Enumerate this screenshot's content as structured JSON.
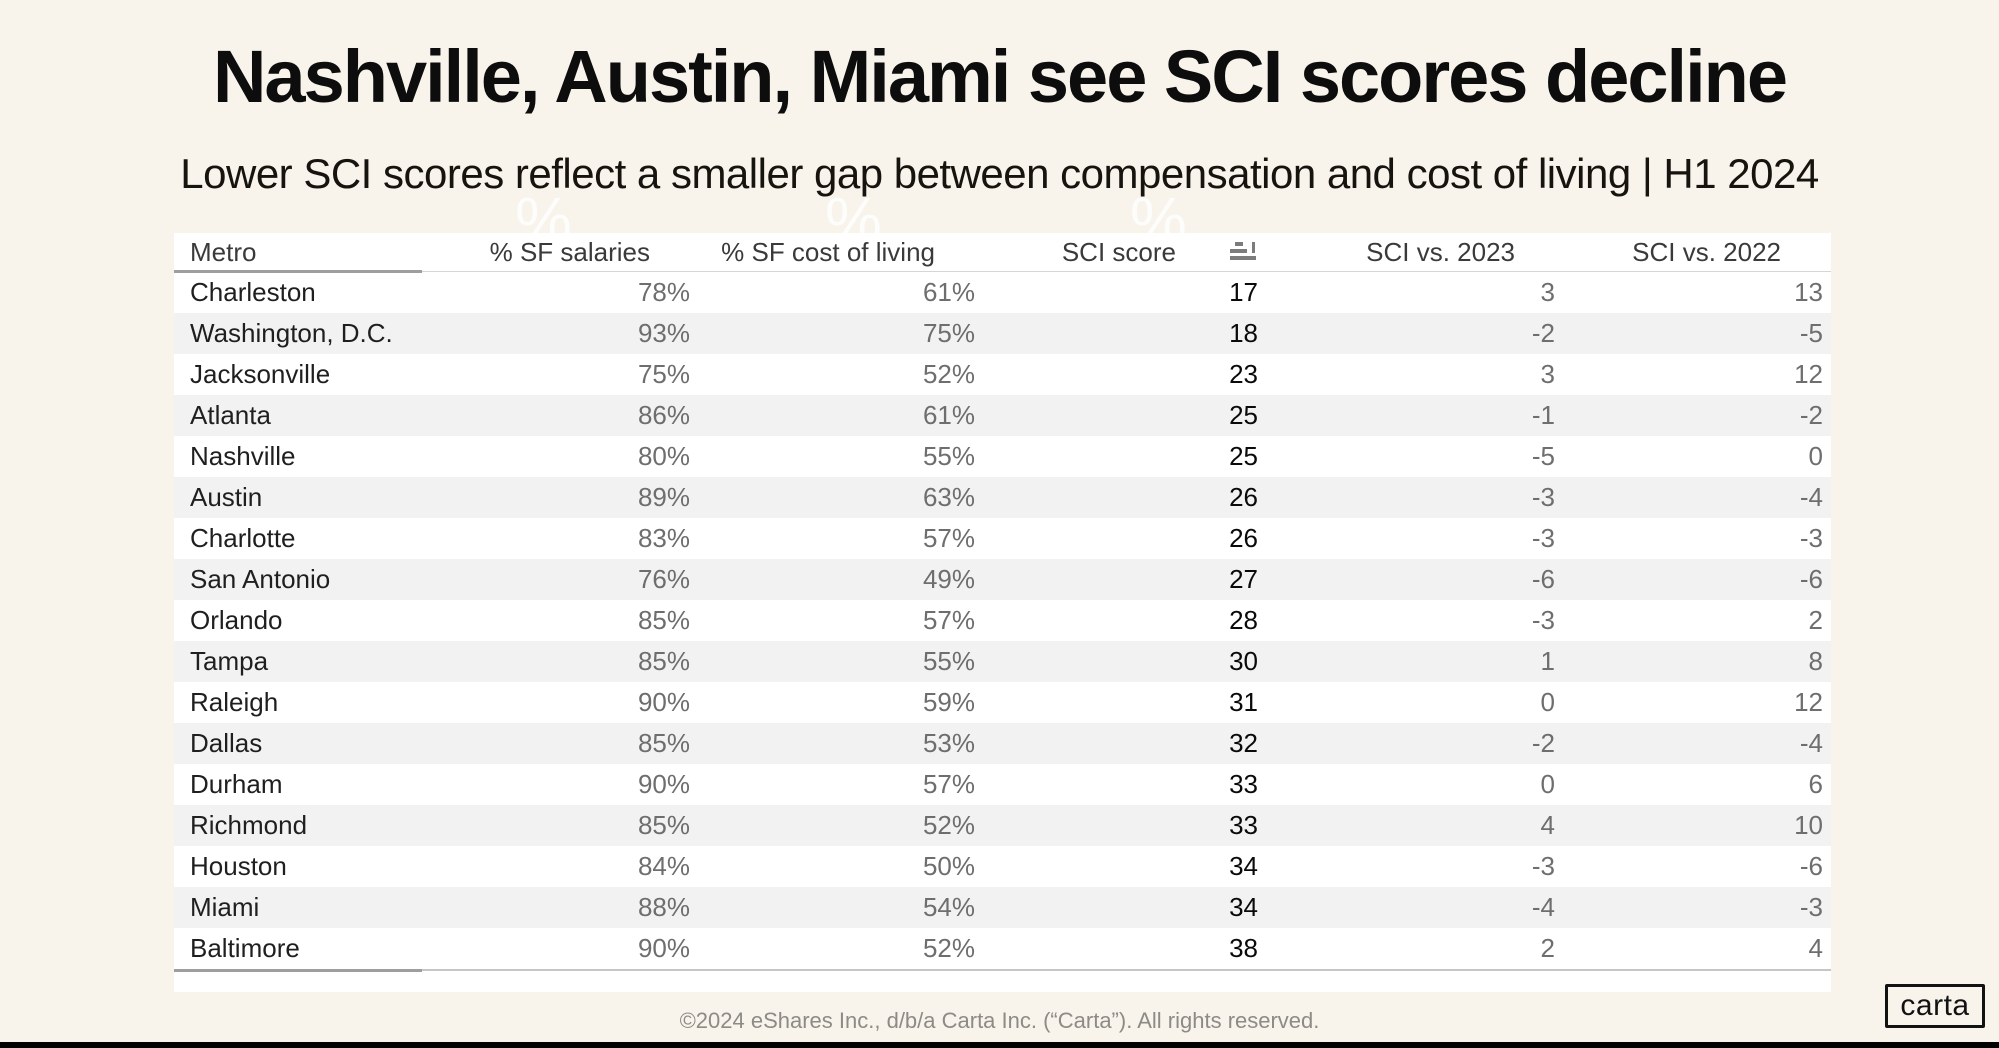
{
  "page": {
    "title": "Nashville, Austin, Miami see SCI scores decline",
    "subtitle": "Lower SCI scores reflect a smaller gap between compensation and cost of living | H1 2024",
    "footer": "©2024 eShares Inc., d/b/a Carta Inc. (“Carta”). All rights reserved.",
    "logo_text": "carta",
    "watermark_glyph": "%"
  },
  "icons": {
    "sci_score_header": "sort-ascending-bars"
  },
  "colors": {
    "background": "#f8f3eb",
    "table_background": "#ffffff",
    "row_stripe": "#f2f2f2",
    "primary_text": "#0d0d0d",
    "muted_value_text": "#6e6e6e",
    "header_text": "#3a3a3a",
    "footer_text": "#8d8b86",
    "bottom_bar": "#010101"
  },
  "chart_data": {
    "type": "table",
    "title": "Nashville, Austin, Miami see SCI scores decline",
    "subtitle": "Lower SCI scores reflect a smaller gap between compensation and cost of living | H1 2024",
    "columns": [
      "Metro",
      "% SF salaries",
      "% SF cost of living",
      "SCI score",
      "SCI vs. 2023",
      "SCI vs. 2022"
    ],
    "row_field_order": [
      "metro",
      "pct_sf_salaries",
      "pct_sf_cost_of_living",
      "sci_score",
      "sci_vs_2023",
      "sci_vs_2022"
    ],
    "sorted_by": "SCI score ascending",
    "rows": [
      {
        "metro": "Charleston",
        "pct_sf_salaries": "78%",
        "pct_sf_cost_of_living": "61%",
        "sci_score": "17",
        "sci_vs_2023": "3",
        "sci_vs_2022": "13"
      },
      {
        "metro": "Washington, D.C.",
        "pct_sf_salaries": "93%",
        "pct_sf_cost_of_living": "75%",
        "sci_score": "18",
        "sci_vs_2023": "-2",
        "sci_vs_2022": "-5"
      },
      {
        "metro": "Jacksonville",
        "pct_sf_salaries": "75%",
        "pct_sf_cost_of_living": "52%",
        "sci_score": "23",
        "sci_vs_2023": "3",
        "sci_vs_2022": "12"
      },
      {
        "metro": "Atlanta",
        "pct_sf_salaries": "86%",
        "pct_sf_cost_of_living": "61%",
        "sci_score": "25",
        "sci_vs_2023": "-1",
        "sci_vs_2022": "-2"
      },
      {
        "metro": "Nashville",
        "pct_sf_salaries": "80%",
        "pct_sf_cost_of_living": "55%",
        "sci_score": "25",
        "sci_vs_2023": "-5",
        "sci_vs_2022": "0"
      },
      {
        "metro": "Austin",
        "pct_sf_salaries": "89%",
        "pct_sf_cost_of_living": "63%",
        "sci_score": "26",
        "sci_vs_2023": "-3",
        "sci_vs_2022": "-4"
      },
      {
        "metro": "Charlotte",
        "pct_sf_salaries": "83%",
        "pct_sf_cost_of_living": "57%",
        "sci_score": "26",
        "sci_vs_2023": "-3",
        "sci_vs_2022": "-3"
      },
      {
        "metro": "San Antonio",
        "pct_sf_salaries": "76%",
        "pct_sf_cost_of_living": "49%",
        "sci_score": "27",
        "sci_vs_2023": "-6",
        "sci_vs_2022": "-6"
      },
      {
        "metro": "Orlando",
        "pct_sf_salaries": "85%",
        "pct_sf_cost_of_living": "57%",
        "sci_score": "28",
        "sci_vs_2023": "-3",
        "sci_vs_2022": "2"
      },
      {
        "metro": "Tampa",
        "pct_sf_salaries": "85%",
        "pct_sf_cost_of_living": "55%",
        "sci_score": "30",
        "sci_vs_2023": "1",
        "sci_vs_2022": "8"
      },
      {
        "metro": "Raleigh",
        "pct_sf_salaries": "90%",
        "pct_sf_cost_of_living": "59%",
        "sci_score": "31",
        "sci_vs_2023": "0",
        "sci_vs_2022": "12"
      },
      {
        "metro": "Dallas",
        "pct_sf_salaries": "85%",
        "pct_sf_cost_of_living": "53%",
        "sci_score": "32",
        "sci_vs_2023": "-2",
        "sci_vs_2022": "-4"
      },
      {
        "metro": "Durham",
        "pct_sf_salaries": "90%",
        "pct_sf_cost_of_living": "57%",
        "sci_score": "33",
        "sci_vs_2023": "0",
        "sci_vs_2022": "6"
      },
      {
        "metro": "Richmond",
        "pct_sf_salaries": "85%",
        "pct_sf_cost_of_living": "52%",
        "sci_score": "33",
        "sci_vs_2023": "4",
        "sci_vs_2022": "10"
      },
      {
        "metro": "Houston",
        "pct_sf_salaries": "84%",
        "pct_sf_cost_of_living": "50%",
        "sci_score": "34",
        "sci_vs_2023": "-3",
        "sci_vs_2022": "-6"
      },
      {
        "metro": "Miami",
        "pct_sf_salaries": "88%",
        "pct_sf_cost_of_living": "54%",
        "sci_score": "34",
        "sci_vs_2023": "-4",
        "sci_vs_2022": "-3"
      },
      {
        "metro": "Baltimore",
        "pct_sf_salaries": "90%",
        "pct_sf_cost_of_living": "52%",
        "sci_score": "38",
        "sci_vs_2023": "2",
        "sci_vs_2022": "4"
      }
    ]
  }
}
